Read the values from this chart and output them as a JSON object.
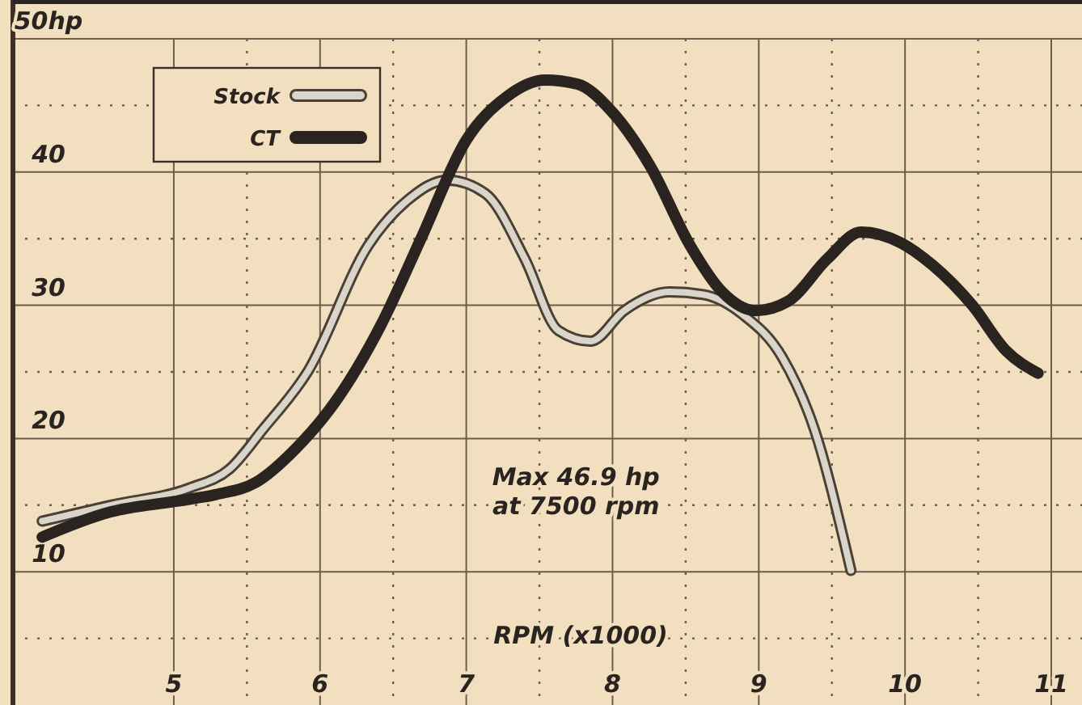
{
  "chart_data": {
    "type": "line",
    "xlabel": "RPM (x1000)",
    "xlim": [
      3.9,
      11
    ],
    "xticks": [
      5,
      6,
      7,
      8,
      9,
      10,
      11
    ],
    "ylim": [
      0,
      50
    ],
    "yticks": [
      10,
      20,
      30,
      40,
      {
        "value": 50,
        "label": "50hp"
      }
    ],
    "grid": true,
    "legend": "top left",
    "marker": "none",
    "line_style": "solid",
    "annotations": [
      "Max 46.9 hp at 7500 rpm"
    ],
    "series": [
      {
        "name": "Stock",
        "color": "#d9d5c9",
        "x": [
          4.1,
          4.57,
          5.11,
          5.38,
          5.61,
          5.92,
          6.33,
          6.6,
          6.87,
          7.13,
          7.4,
          7.63,
          7.85,
          8.08,
          8.39,
          8.62,
          8.89,
          9.16,
          9.38,
          9.63
        ],
        "values": [
          13.8,
          15.0,
          16.3,
          17.7,
          20.7,
          25.1,
          34.5,
          37.9,
          39.4,
          38.4,
          33.5,
          28.1,
          27.3,
          29.6,
          31.0,
          30.8,
          29.3,
          26.1,
          20.7,
          10.1
        ]
      },
      {
        "name": "CT",
        "color": "#2a2420",
        "x": [
          4.1,
          4.57,
          5.02,
          5.29,
          5.56,
          5.83,
          6.1,
          6.42,
          6.69,
          7.0,
          7.27,
          7.54,
          7.76,
          7.99,
          8.26,
          8.53,
          8.75,
          8.98,
          9.2,
          9.47,
          9.7,
          9.97,
          10.19,
          10.46,
          10.69,
          10.91
        ],
        "values": [
          12.6,
          14.5,
          15.3,
          15.8,
          16.7,
          19.2,
          22.7,
          28.6,
          35.0,
          42.4,
          45.6,
          46.9,
          46.6,
          44.6,
          40.4,
          34.5,
          31.0,
          29.6,
          30.3,
          33.5,
          35.5,
          34.7,
          33.0,
          30.0,
          26.6,
          24.9
        ]
      }
    ]
  }
}
